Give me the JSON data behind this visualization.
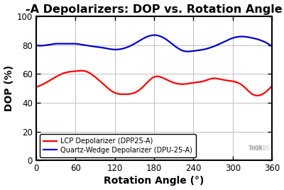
{
  "title": "-A Depolarizers: DOP vs. Rotation Angle",
  "xlabel": "Rotation Angle (°)",
  "ylabel": "DOP (%)",
  "xlim": [
    0,
    360
  ],
  "ylim": [
    0,
    100
  ],
  "xticks": [
    0,
    60,
    120,
    180,
    240,
    300,
    360
  ],
  "yticks": [
    0,
    20,
    40,
    60,
    80,
    100
  ],
  "bg_color": "#ffffff",
  "plot_bg_color": "#ffffff",
  "grid_color": "#c0c0c0",
  "line_red_color": "#ff0000",
  "line_blue_color": "#0000cc",
  "legend_labels": [
    "LCP Depolarizer (DPP25-A)",
    "Quartz-Wedge Depolarizer (DPU-25-A)"
  ],
  "watermark": "THOR",
  "watermark2": "LABS",
  "title_fontsize": 11.5,
  "axis_label_fontsize": 10,
  "tick_fontsize": 8.5,
  "red_x": [
    0,
    15,
    30,
    45,
    60,
    75,
    90,
    105,
    120,
    135,
    150,
    165,
    180,
    195,
    210,
    225,
    240,
    255,
    270,
    285,
    300,
    315,
    330,
    345,
    360
  ],
  "red_y": [
    51,
    54,
    58,
    61,
    62,
    62,
    58,
    52,
    47,
    46,
    47,
    52,
    58,
    57,
    54,
    53,
    54,
    55,
    57,
    56,
    55,
    52,
    46,
    46,
    52
  ],
  "blue_x": [
    0,
    15,
    30,
    45,
    60,
    75,
    90,
    105,
    120,
    135,
    150,
    165,
    180,
    195,
    210,
    225,
    240,
    255,
    270,
    285,
    300,
    315,
    330,
    345,
    360
  ],
  "blue_y": [
    80,
    80,
    81,
    81,
    81,
    80,
    79,
    78,
    77,
    78,
    81,
    85,
    87,
    85,
    80,
    76,
    76,
    77,
    79,
    82,
    85,
    86,
    85,
    83,
    79
  ]
}
